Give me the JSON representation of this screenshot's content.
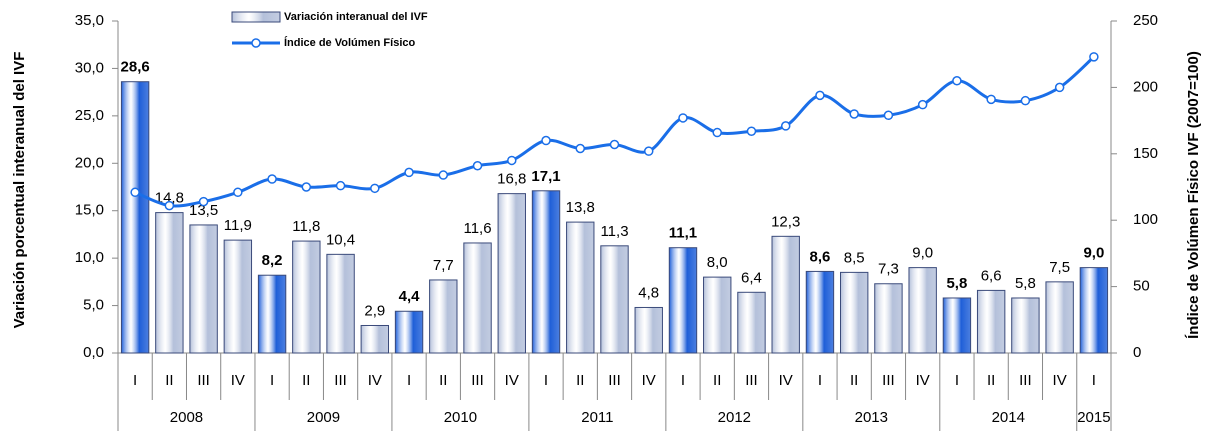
{
  "chart_data": {
    "type": "bar_line",
    "y_label": "Variación porcentual interanual del IVF",
    "y2_label": "Índice de Volúmen Físico IVF (2007=100)",
    "categories": [
      "I",
      "II",
      "III",
      "IV",
      "I",
      "II",
      "III",
      "IV",
      "I",
      "II",
      "III",
      "IV",
      "I",
      "II",
      "III",
      "IV",
      "I",
      "II",
      "III",
      "IV",
      "I",
      "II",
      "III",
      "IV",
      "I",
      "II",
      "III",
      "IV",
      "I"
    ],
    "years": [
      "2008",
      "2009",
      "2010",
      "2011",
      "2012",
      "2013",
      "2014",
      "2015"
    ],
    "series": [
      {
        "name": "Variación interanual del IVF",
        "type": "bar",
        "axis": "y",
        "color": "#b4c0da",
        "colors": [
          "#1f5fd8",
          "#b4c0da",
          "#b4c0da",
          "#b4c0da",
          "#1f5fd8",
          "#b4c0da",
          "#b4c0da",
          "#b4c0da",
          "#1f5fd8",
          "#b4c0da",
          "#b4c0da",
          "#b4c0da",
          "#1f5fd8",
          "#b4c0da",
          "#b4c0da",
          "#b4c0da",
          "#1f5fd8",
          "#b4c0da",
          "#b4c0da",
          "#b4c0da",
          "#1f5fd8",
          "#b4c0da",
          "#b4c0da",
          "#b4c0da",
          "#1f5fd8",
          "#b4c0da",
          "#b4c0da",
          "#b4c0da",
          "#1f5fd8"
        ],
        "values": [
          28.6,
          14.8,
          13.5,
          11.9,
          8.2,
          11.8,
          10.4,
          2.9,
          4.4,
          7.7,
          11.6,
          16.8,
          17.1,
          13.8,
          11.3,
          4.8,
          11.1,
          8.0,
          6.4,
          12.3,
          8.6,
          8.5,
          7.3,
          9.0,
          5.8,
          6.6,
          5.8,
          7.5,
          9.0
        ],
        "value_labels": [
          "28,6",
          "14,8",
          "13,5",
          "11,9",
          "8,2",
          "11,8",
          "10,4",
          "2,9",
          "4,4",
          "7,7",
          "11,6",
          "16,8",
          "17,1",
          "13,8",
          "11,3",
          "4,8",
          "11,1",
          "8,0",
          "6,4",
          "12,3",
          "8,6",
          "8,5",
          "7,3",
          "9,0",
          "5,8",
          "6,6",
          "5,8",
          "7,5",
          "9,0"
        ]
      },
      {
        "name": "Índice de Volúmen Físico",
        "type": "line",
        "axis": "y2",
        "color": "#1a6ee8",
        "values": [
          121,
          111,
          114,
          121,
          131,
          125,
          126,
          124,
          136,
          134,
          141,
          145,
          160,
          154,
          157,
          152,
          177,
          166,
          167,
          171,
          194,
          180,
          179,
          187,
          205,
          191,
          190,
          200,
          223
        ]
      }
    ],
    "ylim": [
      0,
      35
    ],
    "yticks": [
      {
        "value": 0,
        "label": "0,0"
      },
      {
        "value": 5,
        "label": "5,0"
      },
      {
        "value": 10,
        "label": "10,0"
      },
      {
        "value": 15,
        "label": "15,0"
      },
      {
        "value": 20,
        "label": "20,0"
      },
      {
        "value": 25,
        "label": "25,0"
      },
      {
        "value": 30,
        "label": "30,0"
      },
      {
        "value": 35,
        "label": "35,0"
      }
    ],
    "y2lim": [
      0,
      250
    ],
    "y2ticks": [
      0,
      50,
      100,
      150,
      200,
      250
    ]
  }
}
